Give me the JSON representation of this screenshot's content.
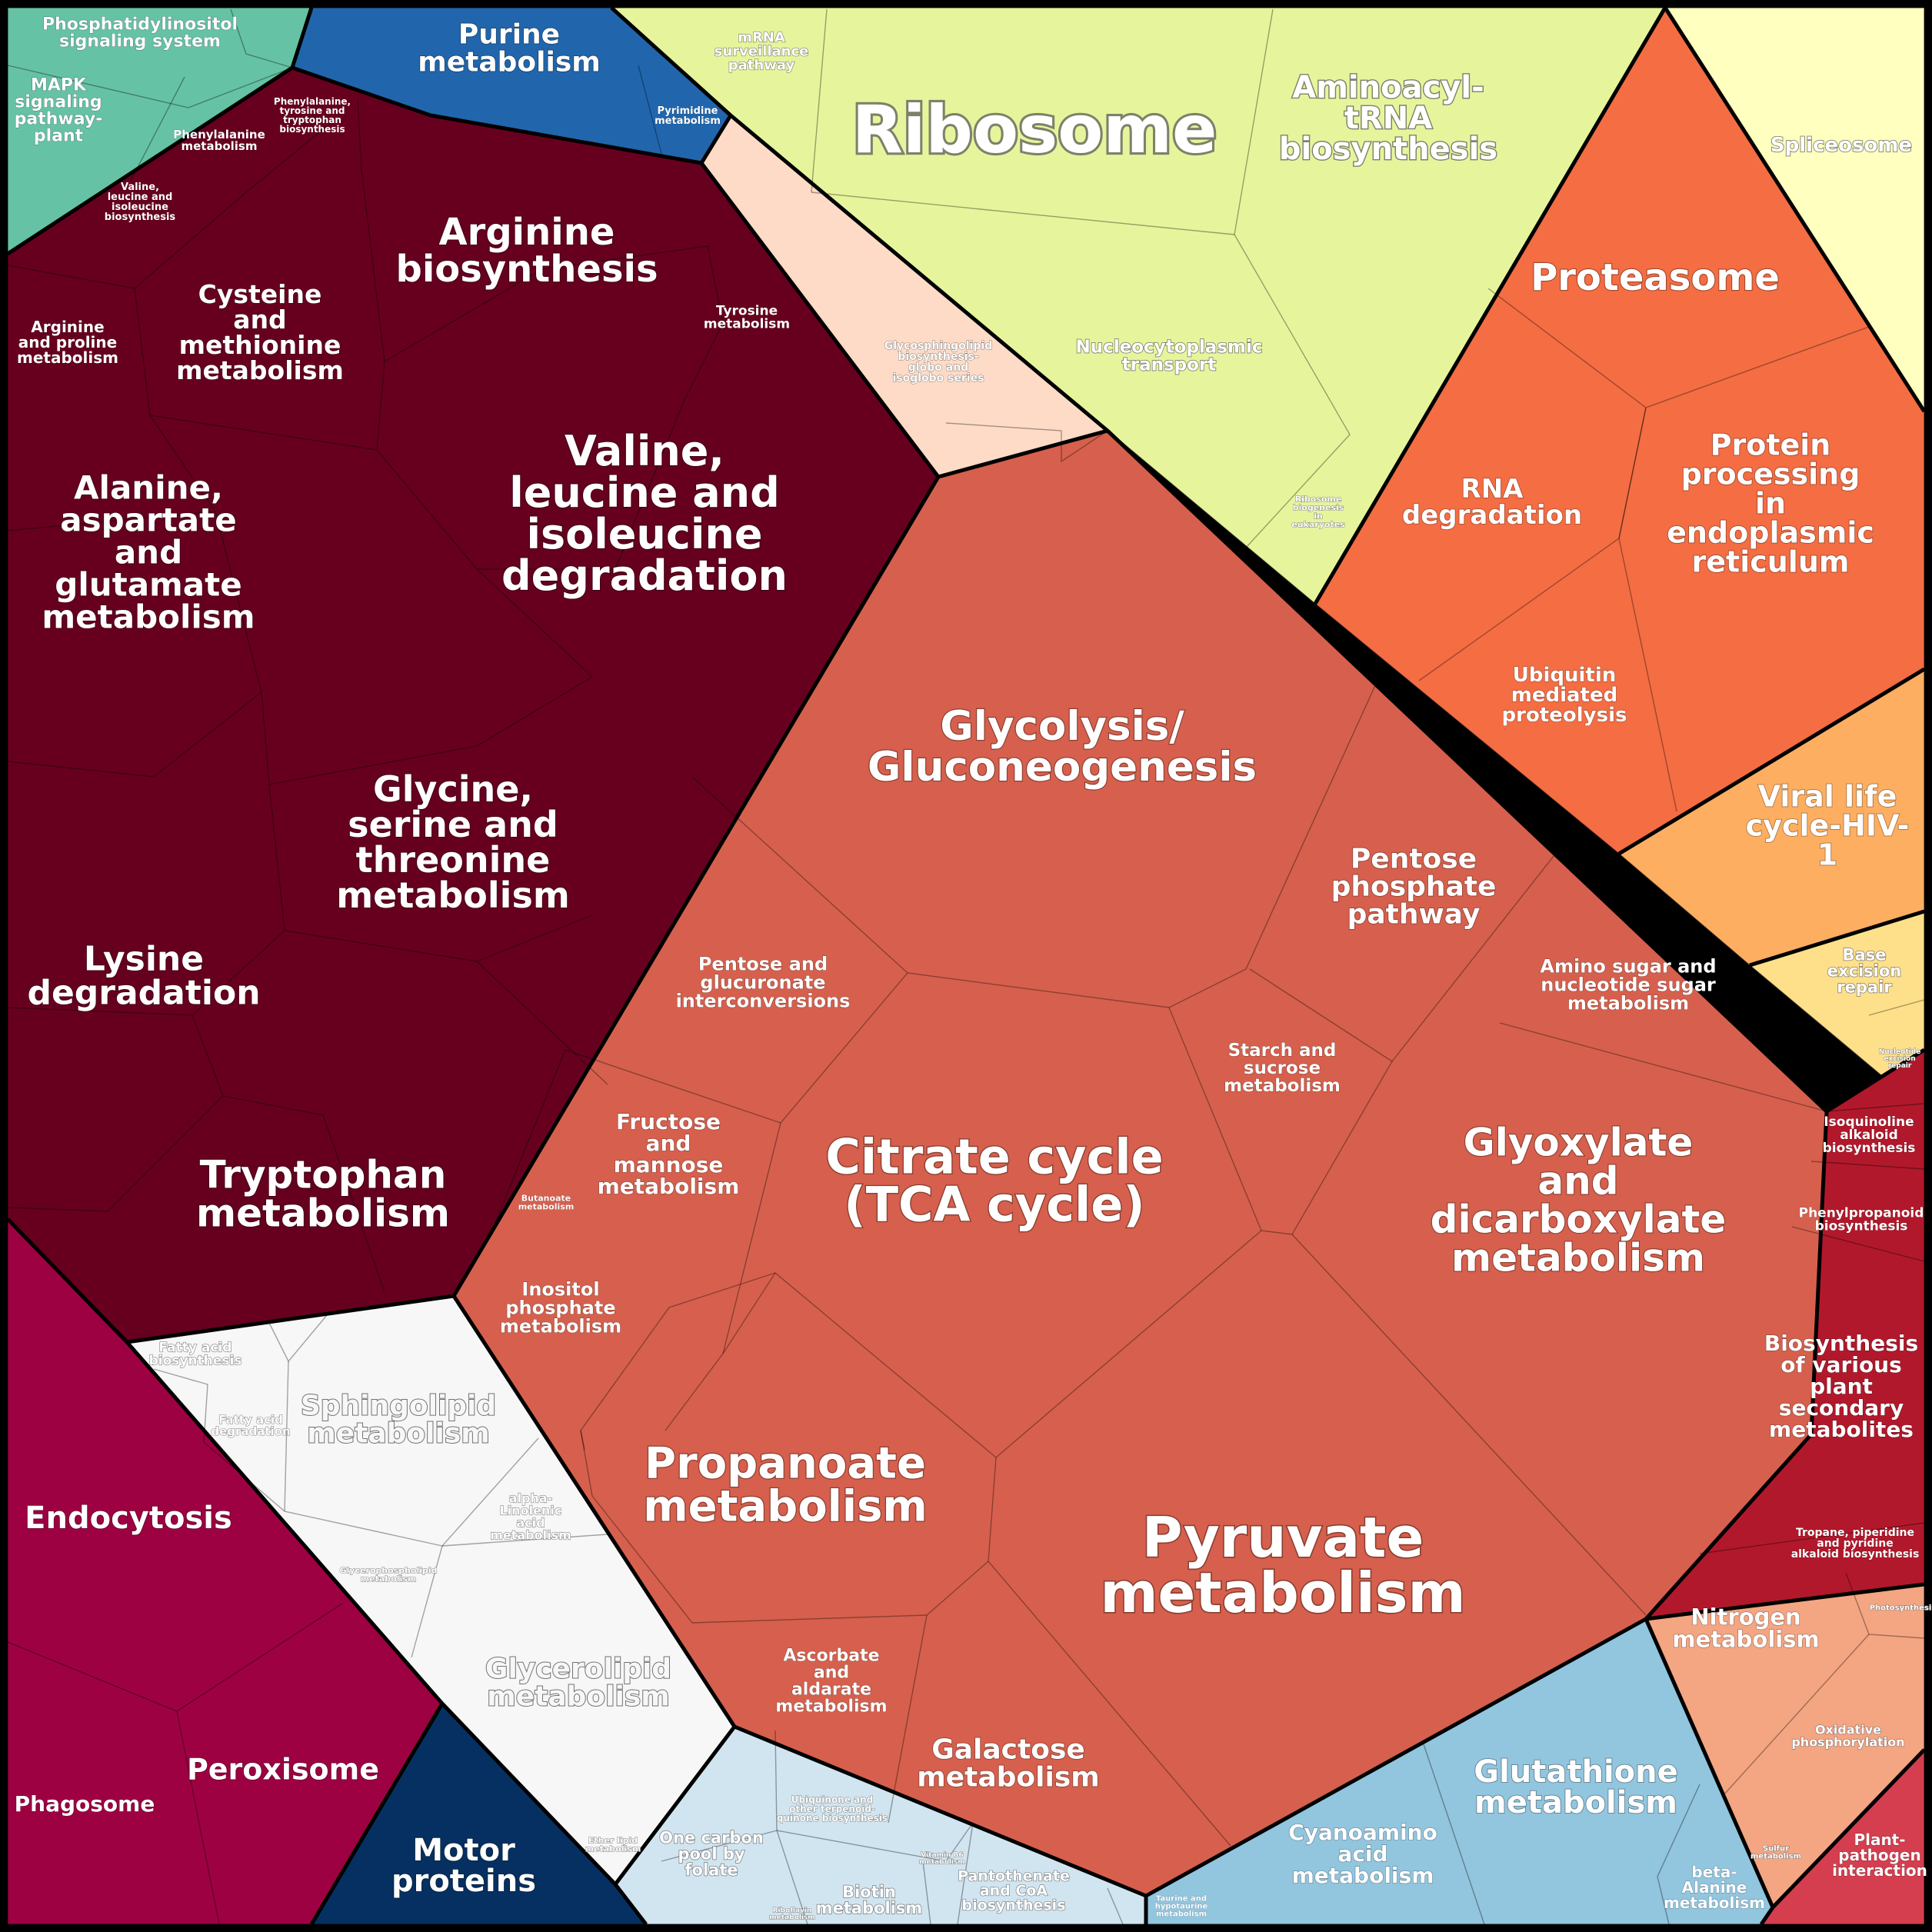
{
  "colors": {
    "ribosome_group": "#e6f59c",
    "proteasome_group": "#f46d43",
    "amino_acid_group": "#67001f",
    "carbohydrate_group": "#d6604d",
    "lipid_group": "#f7f7f7",
    "transport_group": "#9e0142",
    "cofactor_group": "#d1e5f0",
    "energy_group": "#f4a582",
    "glutathione_group": "#92c5de",
    "secondary_group": "#b2182b",
    "nucleotide_group": "#2166ac",
    "signal_group": "#66c2a5",
    "spliceosome_group": "#ffffbf",
    "viral_group": "#fdae61",
    "repair_group": "#fee08b",
    "motor_group": "#053061",
    "glycan_group": "#fddbc7",
    "plant_group": "#d53e4f"
  },
  "labels": {
    "phosphatidylinositol": "Phosphatidylinositol signaling system",
    "mapk": "MAPK signaling pathway- plant",
    "purine": "Purine metabolism",
    "pyrimidine": "Pyrimidine metabolism",
    "mrna_surveillance": "mRNA surveillance pathway",
    "ribosome": "Ribosome",
    "aminoacyl": "Aminoacyl- tRNA biosynthesis",
    "spliceosome": "Spliceosome",
    "nucleocytoplasmic": "Nucleocytoplasmic transport",
    "ribosome_biogenesis": "Ribosome biogenesis in eukaryotes",
    "proteasome": "Proteasome",
    "rna_degradation": "RNA degradation",
    "protein_processing": "Protein processing in endoplasmic reticulum",
    "ubiquitin": "Ubiquitin mediated proteolysis",
    "viral": "Viral life cycle-HIV- 1",
    "base_excision": "Base excision repair",
    "nucleotide_excision": "Nucleotide excision repair",
    "phenylalanine": "Phenylalanine metabolism",
    "phe_tyr_trp": "Phenylalanine, tyrosine and tryptophan biosynthesis",
    "valine_biosynthesis": "Valine, leucine and isoleucine biosynthesis",
    "arginine_biosynthesis": "Arginine biosynthesis",
    "tyrosine": "Tyrosine metabolism",
    "cysteine": "Cysteine and methionine metabolism",
    "arginine_proline": "Arginine and proline metabolism",
    "valine_degradation": "Valine, leucine and isoleucine degradation",
    "alanine": "Alanine, aspartate and glutamate metabolism",
    "glycine": "Glycine, serine and threonine metabolism",
    "lysine": "Lysine degradation",
    "tryptophan": "Tryptophan metabolism",
    "glycosphingolipid": "Glycosphingolipid biosynthesis- globo and isoglobo series",
    "glycolysis": "Glycolysis/ Gluconeogenesis",
    "pentose_phosphate": "Pentose phosphate pathway",
    "amino_sugar": "Amino sugar and nucleotide sugar metabolism",
    "pentose_glucuronate": "Pentose and glucuronate interconversions",
    "starch": "Starch and sucrose metabolism",
    "fructose": "Fructose and mannose metabolism",
    "citrate": "Citrate cycle (TCA cycle)",
    "glyoxylate": "Glyoxylate and dicarboxylate metabolism",
    "butanoate": "Butanoate metabolism",
    "inositol": "Inositol phosphate metabolism",
    "propanoate": "Propanoate metabolism",
    "pyruvate": "Pyruvate metabolism",
    "ascorbate": "Ascorbate and aldarate metabolism",
    "galactose": "Galactose metabolism",
    "isoquinoline": "Isoquinoline alkaloid biosynthesis",
    "phenylpropanoid": "Phenylpropanoid biosynthesis",
    "plant_secondary": "Biosynthesis of various plant secondary metabolites",
    "tropane": "Tropane, piperidine and pyridine alkaloid biosynthesis",
    "fatty_acid_bio": "Fatty acid biosynthesis",
    "fatty_acid_deg": "Fatty acid degradation",
    "sphingolipid": "Sphingolipid metabolism",
    "alpha_linolenic": "alpha- Linolenic acid metabolism",
    "glycerophospholipid": "Glycerophospholipid metabolism",
    "glycerolipid": "Glycerolipid metabolism",
    "ether_lipid": "Ether lipid metabolism",
    "endocytosis": "Endocytosis",
    "phagosome": "Phagosome",
    "peroxisome": "Peroxisome",
    "motor_proteins": "Motor proteins",
    "one_carbon": "One carbon pool by folate",
    "ubiquinone": "Ubiquinone and other terpenoid- quinone biosynthesis",
    "biotin": "Biotin metabolism",
    "riboflavin": "Riboflavin metabolism",
    "vitamin_b6": "Vitamin B6 metabolism",
    "pantothenate": "Pantothenate and CoA biosynthesis",
    "taurine": "Taurine and hypotaurine metabolism",
    "cyanoamino": "Cyanoamino acid metabolism",
    "glutathione": "Glutathione metabolism",
    "beta_alanine": "beta- Alanine metabolism",
    "nitrogen": "Nitrogen metabolism",
    "photosynthesis": "Photosynthesis",
    "oxidative": "Oxidative phosphorylation",
    "sulfur": "Sulfur metabolism",
    "plant_pathogen": "Plant- pathogen interaction"
  }
}
